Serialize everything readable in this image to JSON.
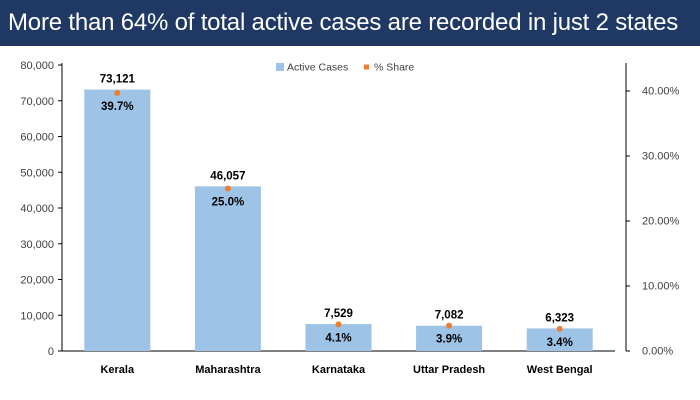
{
  "header": {
    "title": "More than 64% of total active cases are recorded in just 2 states"
  },
  "colors": {
    "banner": "#1f3864",
    "bar": "#9dc3e6",
    "marker": "#ed7d31",
    "axis": "#000000"
  },
  "chart_data": {
    "type": "bar",
    "title": "More than 64% of total active cases are recorded in just 2 states",
    "categories": [
      "Kerala",
      "Maharashtra",
      "Karnataka",
      "Uttar Pradesh",
      "West Bengal"
    ],
    "series": [
      {
        "name": "Active Cases",
        "type": "bar",
        "axis": "left",
        "values": [
          73121,
          46057,
          7529,
          7082,
          6323
        ],
        "labels": [
          "73,121",
          "46,057",
          "7,529",
          "7,082",
          "6,323"
        ]
      },
      {
        "name": "% Share",
        "type": "scatter",
        "axis": "right",
        "values": [
          39.7,
          25.0,
          4.1,
          3.9,
          3.4
        ],
        "labels": [
          "39.7%",
          "25.0%",
          "4.1%",
          "3.9%",
          "3.4%"
        ]
      }
    ],
    "y_left": {
      "ylim": [
        0,
        80000
      ],
      "ticks": [
        0,
        10000,
        20000,
        30000,
        40000,
        50000,
        60000,
        70000,
        80000
      ],
      "tick_labels": [
        "0",
        "10,000",
        "20,000",
        "30,000",
        "40,000",
        "50,000",
        "60,000",
        "70,000",
        "80,000"
      ]
    },
    "y_right": {
      "ylim": [
        0,
        44
      ],
      "ticks": [
        0,
        10,
        20,
        30,
        40
      ],
      "tick_labels": [
        "0.00%",
        "10.00%",
        "20.00%",
        "30.00%",
        "40.00%"
      ]
    },
    "legend": {
      "position": "top-center",
      "entries": [
        "Active Cases",
        "% Share"
      ]
    },
    "grid": false
  }
}
